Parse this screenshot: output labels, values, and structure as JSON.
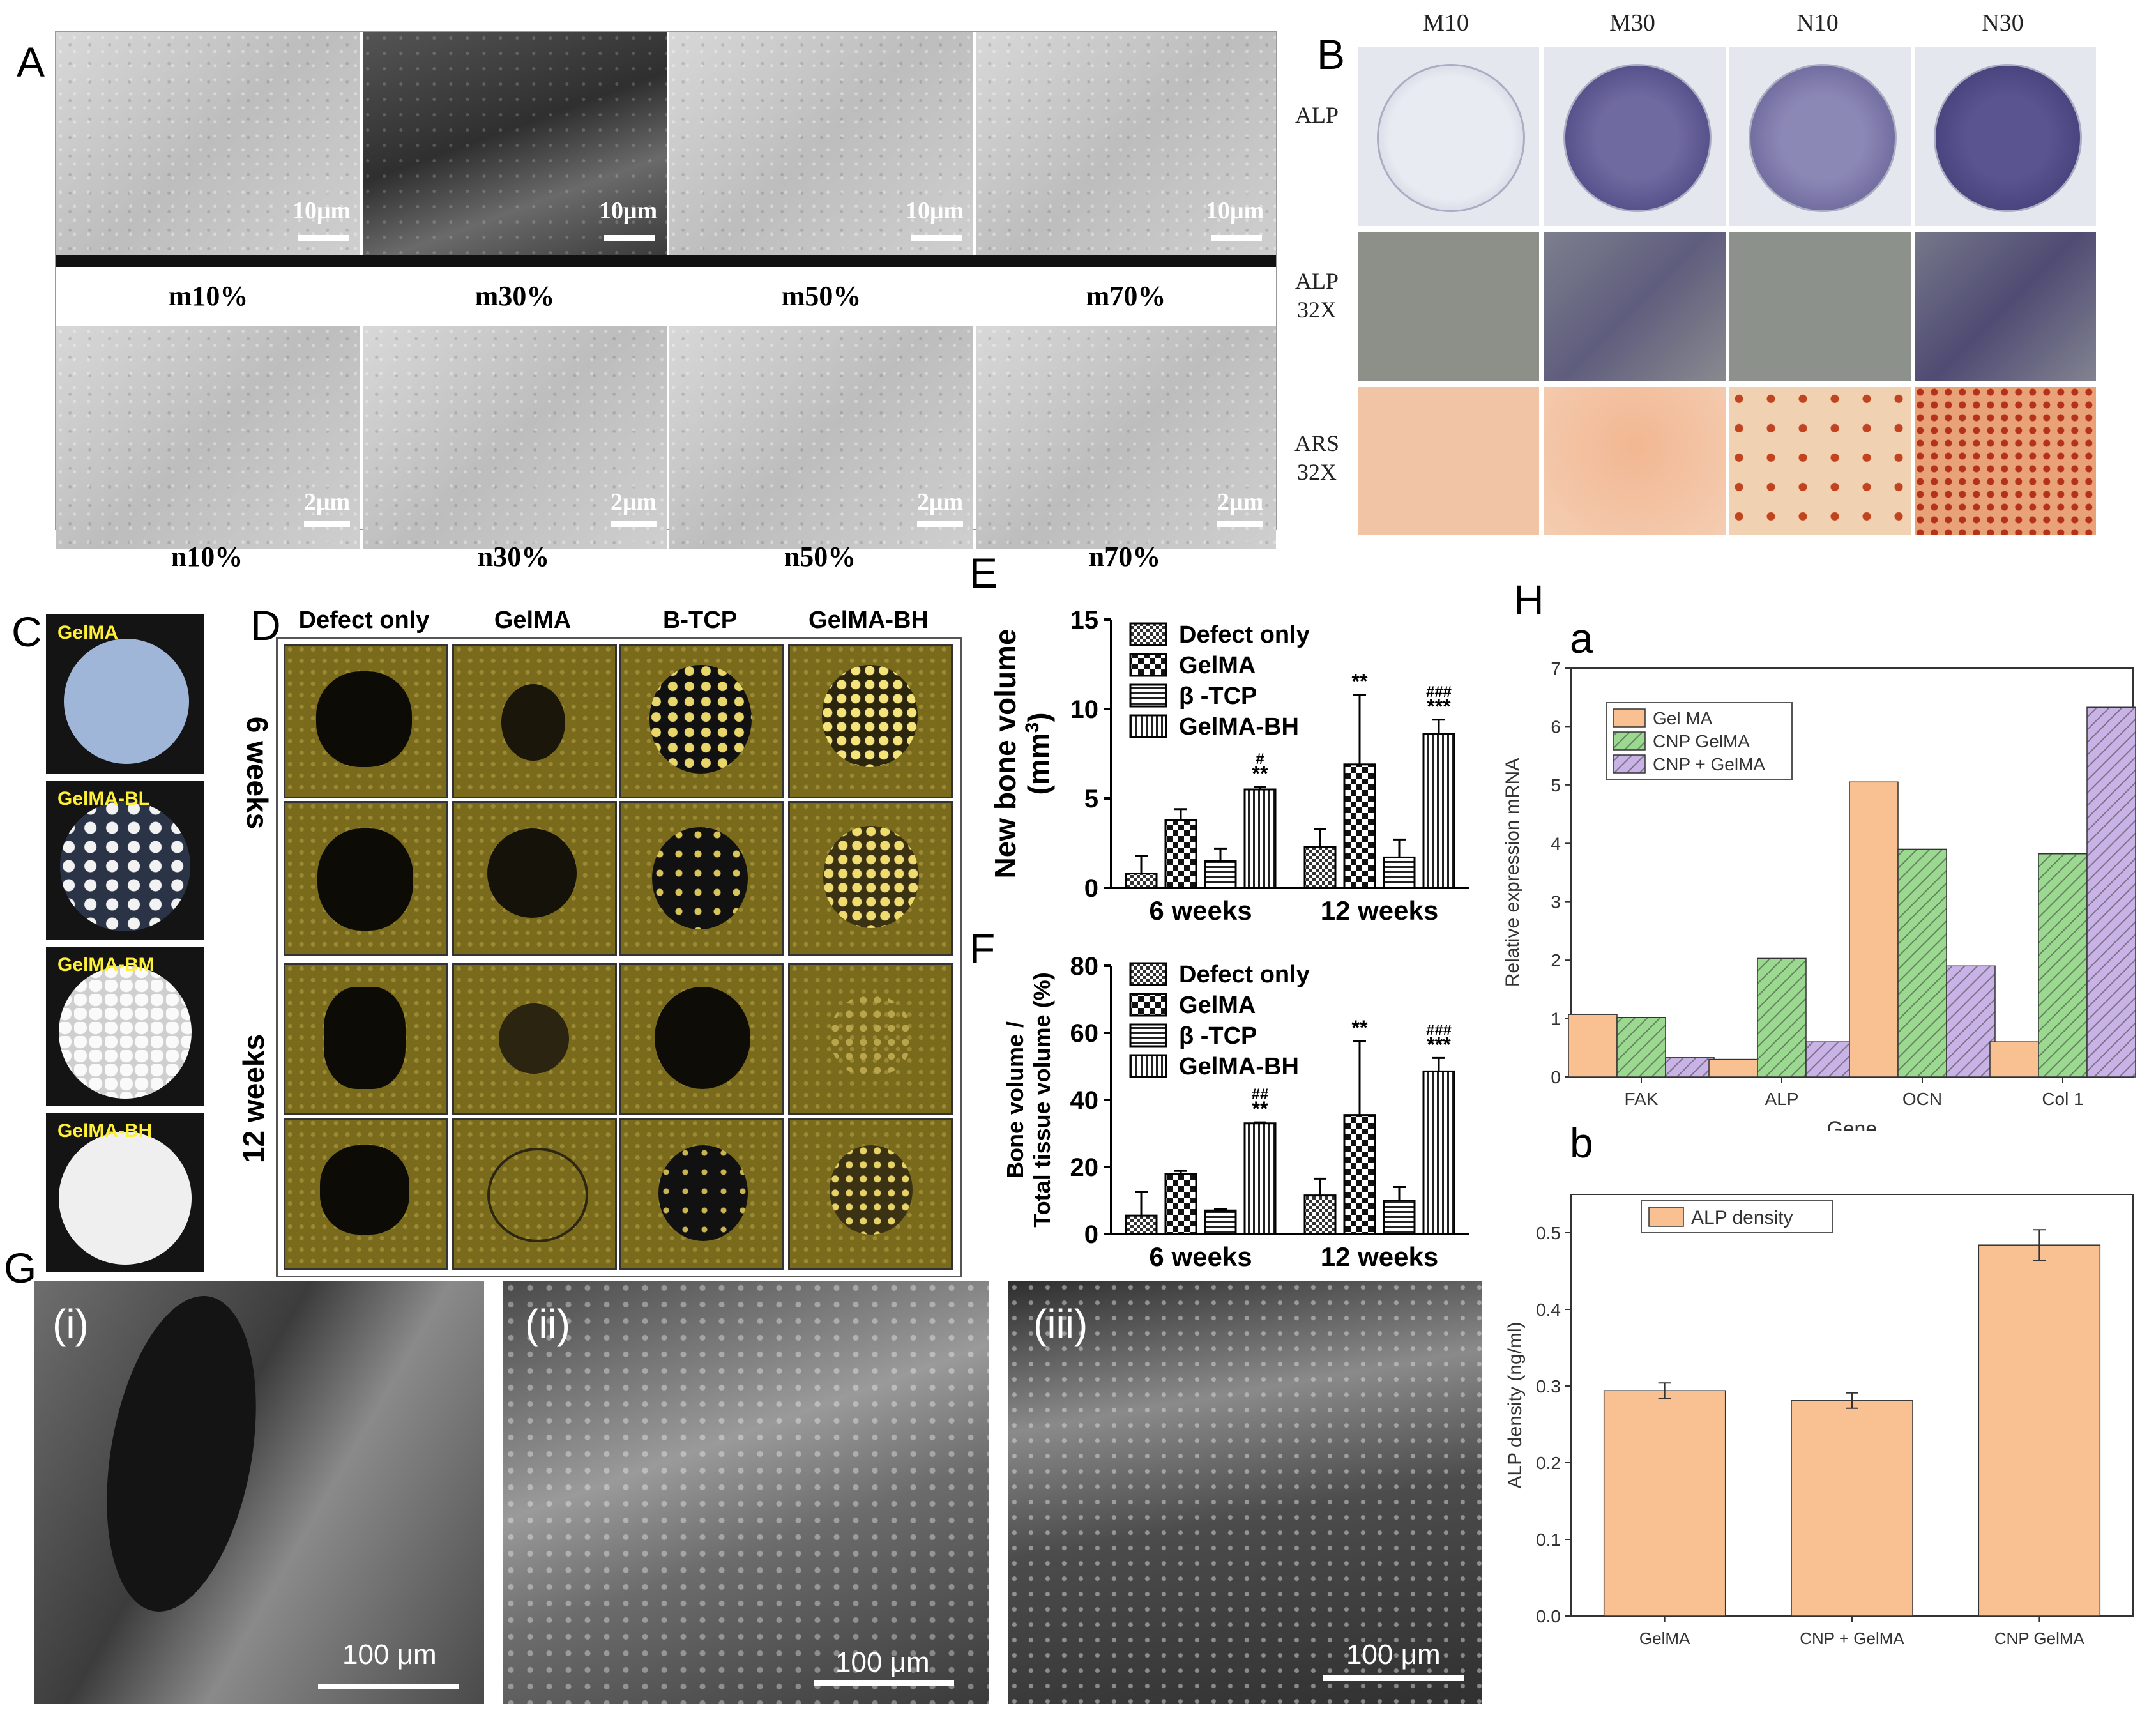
{
  "panels": {
    "A": {
      "label": "A",
      "top_row": [
        "m10%",
        "m30%",
        "m50%",
        "m70%"
      ],
      "bottom_row": [
        "n10%",
        "n30%",
        "n50%",
        "n70%"
      ],
      "top_scale": "10μm",
      "bottom_scale": "2μm"
    },
    "B": {
      "label": "B",
      "columns": [
        "M10",
        "M30",
        "N10",
        "N30"
      ],
      "rows": [
        "ALP",
        "ALP\n32X",
        "ARS\n32X"
      ]
    },
    "C": {
      "label": "C",
      "disks": [
        "GelMA",
        "GelMA-BL",
        "GelMA-BM",
        "GelMA-BH"
      ]
    },
    "D": {
      "label": "D",
      "columns": [
        "Defect only",
        "GelMA",
        "B-TCP",
        "GelMA-BH"
      ],
      "rows": [
        "6 weeks",
        "12 weeks"
      ]
    },
    "E": {
      "label": "E"
    },
    "F": {
      "label": "F"
    },
    "G": {
      "label": "G",
      "tiles": [
        {
          "tag": "(i)",
          "scale": "100 μm"
        },
        {
          "tag": "(ii)",
          "scale": "100 μm"
        },
        {
          "tag": "(iii)",
          "scale": "100 μm"
        }
      ]
    },
    "H": {
      "label": "H",
      "sub_a": "a",
      "sub_b": "b"
    }
  },
  "chart_data": [
    {
      "id": "E",
      "type": "bar",
      "ylabel": "New bone volume (mm3)",
      "categories": [
        "6 weeks",
        "12 weeks"
      ],
      "ylim": [
        0,
        15
      ],
      "yticks": [
        0,
        5,
        10,
        15
      ],
      "series": [
        {
          "name": "Defect only",
          "values": [
            0.8,
            2.3
          ],
          "errors": [
            1.0,
            1.0
          ],
          "pattern": "checker-small"
        },
        {
          "name": "GelMA",
          "values": [
            3.8,
            6.9
          ],
          "errors": [
            0.6,
            3.9
          ],
          "pattern": "checker-large"
        },
        {
          "name": "β -TCP",
          "values": [
            1.5,
            1.7
          ],
          "errors": [
            0.7,
            1.0
          ],
          "pattern": "hlines"
        },
        {
          "name": "GelMA-BH",
          "values": [
            5.5,
            8.6
          ],
          "errors": [
            0.15,
            0.8
          ],
          "pattern": "vlines"
        }
      ],
      "annotations": [
        {
          "category": "6 weeks",
          "series": "GelMA-BH",
          "text": [
            "#",
            "**"
          ]
        },
        {
          "category": "12 weeks",
          "series": "GelMA",
          "text": [
            "**"
          ]
        },
        {
          "category": "12 weeks",
          "series": "GelMA-BH",
          "text": [
            "###",
            "***"
          ]
        }
      ]
    },
    {
      "id": "F",
      "type": "bar",
      "ylabel": "Bone volume / Total tissue volume (%)",
      "categories": [
        "6 weeks",
        "12 weeks"
      ],
      "ylim": [
        0,
        80
      ],
      "yticks": [
        0,
        20,
        40,
        60,
        80
      ],
      "series": [
        {
          "name": "Defect only",
          "values": [
            5.5,
            11.5
          ],
          "errors": [
            7.0,
            5.0
          ],
          "pattern": "checker-small"
        },
        {
          "name": "GelMA",
          "values": [
            18,
            35.5
          ],
          "errors": [
            0.8,
            22
          ],
          "pattern": "checker-large"
        },
        {
          "name": "β -TCP",
          "values": [
            7,
            10
          ],
          "errors": [
            0.5,
            4.0
          ],
          "pattern": "hlines"
        },
        {
          "name": "GelMA-BH",
          "values": [
            33,
            48.5
          ],
          "errors": [
            0.3,
            4.0
          ],
          "pattern": "vlines"
        }
      ],
      "annotations": [
        {
          "category": "6 weeks",
          "series": "GelMA-BH",
          "text": [
            "##",
            "**"
          ]
        },
        {
          "category": "12 weeks",
          "series": "GelMA",
          "text": [
            "**"
          ]
        },
        {
          "category": "12 weeks",
          "series": "GelMA-BH",
          "text": [
            "###",
            "***"
          ]
        }
      ]
    },
    {
      "id": "H-a",
      "type": "bar",
      "xlabel": "Gene",
      "ylabel": "Relative expression mRNA",
      "categories": [
        "FAK",
        "ALP",
        "OCN",
        "Col 1"
      ],
      "ylim": [
        0,
        7
      ],
      "yticks": [
        0,
        1,
        2,
        3,
        4,
        5,
        6,
        7
      ],
      "legend": "top-left",
      "series": [
        {
          "name": "Gel MA",
          "values": [
            1.07,
            0.3,
            5.05,
            0.6
          ],
          "color": "#f9c191"
        },
        {
          "name": "CNP GelMA",
          "values": [
            1.02,
            2.03,
            3.9,
            3.82
          ],
          "color": "#9ad98f"
        },
        {
          "name": "CNP + GelMA",
          "values": [
            0.33,
            0.6,
            1.9,
            6.33
          ],
          "color": "#c9b3e6"
        }
      ]
    },
    {
      "id": "H-b",
      "type": "bar",
      "ylabel": "ALP density (ng/ml)",
      "categories": [
        "GelMA",
        "CNP + GelMA",
        "CNP GelMA"
      ],
      "ylim": [
        0,
        0.55
      ],
      "yticks": [
        0.0,
        0.1,
        0.2,
        0.3,
        0.4,
        0.5
      ],
      "legend": "top-left",
      "series": [
        {
          "name": "ALP density",
          "values": [
            0.294,
            0.281,
            0.484
          ],
          "errors": [
            0.01,
            0.01,
            0.02
          ],
          "color": "#f9c191"
        }
      ]
    }
  ]
}
